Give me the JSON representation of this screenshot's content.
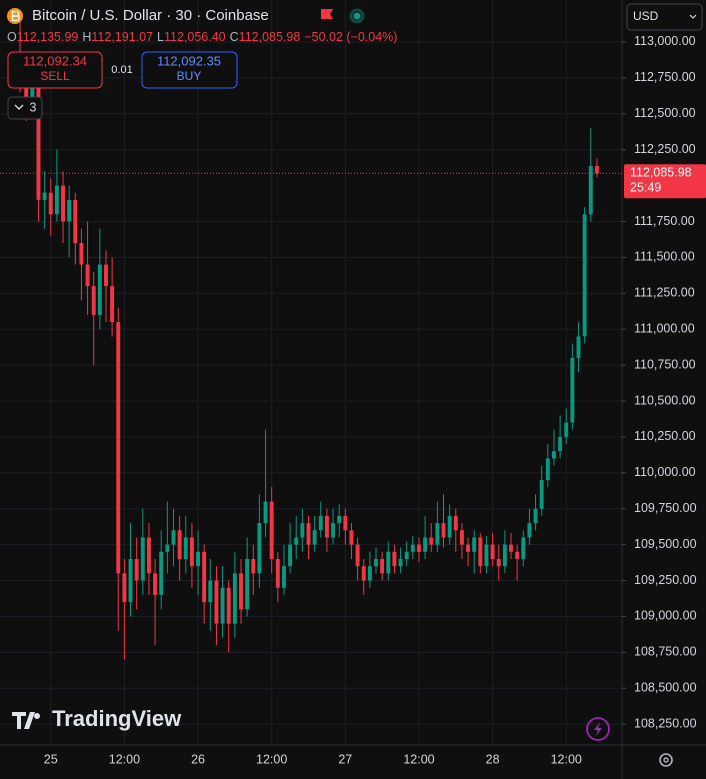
{
  "ui": {
    "symbol": "Bitcoin / U.S. Dollar · 30 · Coinbase",
    "ohlc": {
      "o_label": "O",
      "open": "112,135.99",
      "h_label": "H",
      "high": "112,191.07",
      "l_label": "L",
      "low": "112,056.40",
      "c_label": "C",
      "close": "112,085.98",
      "change": "−50.02 (−0.04%)"
    },
    "sell_price": "112,092.34",
    "sell": "SELL",
    "spread": "0.01",
    "buy_price": "112,092.35",
    "buy": "BUY",
    "indicator_count": "3",
    "currency": "USD",
    "last_price": "112,085.98",
    "countdown": "25:49",
    "logo": "TradingView"
  },
  "chart_data": {
    "type": "candlestick",
    "grid": true,
    "up_color": "#089981",
    "down_color": "#f23645",
    "categories": [
      null,
      null,
      null,
      null,
      null,
      "25",
      null,
      null,
      null,
      null,
      null,
      null,
      null,
      null,
      null,
      null,
      null,
      "12:00",
      null,
      null,
      null,
      null,
      null,
      null,
      null,
      null,
      null,
      null,
      null,
      "26",
      null,
      null,
      null,
      null,
      null,
      null,
      null,
      null,
      null,
      null,
      null,
      "12:00",
      null,
      null,
      null,
      null,
      null,
      null,
      null,
      null,
      null,
      null,
      null,
      "27",
      null,
      null,
      null,
      null,
      null,
      null,
      null,
      null,
      null,
      null,
      null,
      "12:00",
      null,
      null,
      null,
      null,
      null,
      null,
      null,
      null,
      null,
      null,
      null,
      "28",
      null,
      null,
      null,
      null,
      null,
      null,
      null,
      null,
      null,
      null,
      null,
      "12:00",
      null,
      null,
      null,
      null,
      null
    ],
    "open": [
      112900,
      112800,
      112600,
      112700,
      111900,
      111950,
      111800,
      112000,
      111750,
      111900,
      111600,
      111450,
      111300,
      111100,
      111450,
      111300,
      111050,
      109300,
      109100,
      109400,
      109250,
      109550,
      109300,
      109150,
      109450,
      109500,
      109600,
      109400,
      109550,
      109350,
      109450,
      109100,
      109250,
      108950,
      109200,
      108950,
      109300,
      109050,
      109400,
      109300,
      109650,
      109800,
      109400,
      109200,
      109350,
      109500,
      109550,
      109650,
      109500,
      109600,
      109700,
      109550,
      109650,
      109700,
      109600,
      109500,
      109350,
      109250,
      109350,
      109400,
      109300,
      109450,
      109350,
      109400,
      109450,
      109500,
      109450,
      109550,
      109500,
      109650,
      109550,
      109700,
      109600,
      109500,
      109450,
      109550,
      109350,
      109500,
      109400,
      109350,
      109500,
      109450,
      109400,
      109550,
      109650,
      109750,
      109950,
      110100,
      110150,
      110250,
      110350,
      110800,
      110950,
      111800,
      112135.99
    ],
    "high": [
      113200,
      112900,
      112850,
      112750,
      112100,
      112050,
      112250,
      112100,
      112000,
      111950,
      111700,
      111750,
      111400,
      111700,
      111550,
      111500,
      111150,
      109400,
      109650,
      109550,
      109750,
      109650,
      109400,
      109600,
      109800,
      109750,
      109700,
      109700,
      109650,
      109600,
      109500,
      109400,
      109350,
      109350,
      109250,
      109450,
      109400,
      109550,
      109500,
      109850,
      110300,
      109900,
      109450,
      109500,
      109650,
      109700,
      109750,
      109700,
      109700,
      109800,
      109750,
      109750,
      109780,
      109750,
      109650,
      109550,
      109400,
      109450,
      109480,
      109450,
      109520,
      109500,
      109480,
      109520,
      109560,
      109550,
      109700,
      109650,
      109800,
      109850,
      109780,
      109750,
      109650,
      109550,
      109600,
      109580,
      109560,
      109580,
      109500,
      109600,
      109580,
      109500,
      109600,
      109750,
      109850,
      110050,
      110200,
      110300,
      110400,
      110450,
      110900,
      111050,
      111850,
      112400,
      112191.07
    ],
    "low": [
      112650,
      112450,
      112500,
      111750,
      111700,
      111650,
      111750,
      111600,
      111500,
      111450,
      111200,
      111100,
      110750,
      111000,
      111050,
      110950,
      108900,
      108700,
      109000,
      109050,
      109150,
      109150,
      108800,
      109050,
      109300,
      109350,
      109250,
      109300,
      109200,
      109150,
      108950,
      108900,
      108800,
      108850,
      108750,
      108850,
      108950,
      109000,
      109150,
      109200,
      109550,
      109300,
      109100,
      109150,
      109300,
      109400,
      109450,
      109400,
      109450,
      109550,
      109450,
      109500,
      109550,
      109500,
      109400,
      109250,
      109150,
      109200,
      109300,
      109250,
      109250,
      109300,
      109300,
      109350,
      109400,
      109380,
      109400,
      109450,
      109450,
      109480,
      109500,
      109450,
      109400,
      109350,
      109300,
      109300,
      109300,
      109350,
      109250,
      109300,
      109400,
      109250,
      109350,
      109500,
      109600,
      109700,
      109900,
      110050,
      110100,
      110200,
      110300,
      110700,
      110900,
      111750,
      112056.4
    ],
    "close": [
      112800,
      112600,
      112700,
      111900,
      111950,
      111800,
      112000,
      111750,
      111900,
      111600,
      111450,
      111300,
      111100,
      111450,
      111300,
      111050,
      109300,
      109100,
      109400,
      109250,
      109550,
      109300,
      109150,
      109450,
      109500,
      109600,
      109400,
      109550,
      109350,
      109450,
      109100,
      109250,
      108950,
      109200,
      108950,
      109300,
      109050,
      109400,
      109300,
      109650,
      109800,
      109400,
      109200,
      109350,
      109500,
      109550,
      109650,
      109500,
      109600,
      109700,
      109550,
      109650,
      109700,
      109600,
      109500,
      109350,
      109250,
      109350,
      109400,
      109300,
      109450,
      109350,
      109400,
      109450,
      109500,
      109450,
      109550,
      109500,
      109650,
      109550,
      109700,
      109600,
      109500,
      109450,
      109550,
      109350,
      109500,
      109400,
      109350,
      109500,
      109450,
      109400,
      109550,
      109650,
      109750,
      109950,
      110100,
      110150,
      110250,
      110350,
      110800,
      110950,
      111800,
      112135.99,
      112085.98
    ],
    "ylim": [
      108105,
      113292
    ],
    "yticks": [
      {
        "value": 113000,
        "label": "113,000.00"
      },
      {
        "value": 112750,
        "label": "112,750.00"
      },
      {
        "value": 112500,
        "label": "112,500.00"
      },
      {
        "value": 112250,
        "label": "112,250.00"
      },
      {
        "value": 111750,
        "label": "111,750.00"
      },
      {
        "value": 111500,
        "label": "111,500.00"
      },
      {
        "value": 111250,
        "label": "111,250.00"
      },
      {
        "value": 111000,
        "label": "111,000.00"
      },
      {
        "value": 110750,
        "label": "110,750.00"
      },
      {
        "value": 110500,
        "label": "110,500.00"
      },
      {
        "value": 110250,
        "label": "110,250.00"
      },
      {
        "value": 110000,
        "label": "110,000.00"
      },
      {
        "value": 109750,
        "label": "109,750.00"
      },
      {
        "value": 109500,
        "label": "109,500.00"
      },
      {
        "value": 109250,
        "label": "109,250.00"
      },
      {
        "value": 109000,
        "label": "109,000.00"
      },
      {
        "value": 108750,
        "label": "108,750.00"
      },
      {
        "value": 108500,
        "label": "108,500.00"
      },
      {
        "value": 108250,
        "label": "108,250.00"
      }
    ]
  }
}
